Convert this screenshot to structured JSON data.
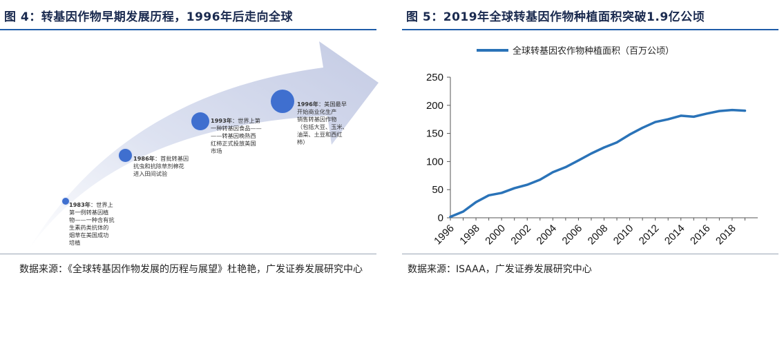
{
  "left_panel": {
    "title": "图 4：转基因作物早期发展历程，1996年后走向全球",
    "source": "数据来源：《全球转基因作物发展的历程与展望》杜艳艳，广发证券发展研究中心",
    "milestones": [
      {
        "year": "1983年",
        "lines": [
          "：世界上",
          "第一例转基因植",
          "物——一种含有抗",
          "生素药类抗体的",
          "烟草在美国成功",
          "培植"
        ]
      },
      {
        "year": "1986年",
        "lines": [
          "：首批转基因",
          "抗虫和抗除草剂棉花",
          "进入田间试验"
        ]
      },
      {
        "year": "1993年",
        "lines": [
          "：世界上第",
          "一种转基因食品——",
          "——转基因晚熟西",
          "红柿正式投放美国",
          "市场"
        ]
      },
      {
        "year": "1996年",
        "lines": [
          "：美国最早",
          "开始商业化生产",
          "销售转基因作物",
          "（包括大豆、玉米、",
          "油菜、土豆和西红",
          "柿）"
        ]
      }
    ]
  },
  "right_panel": {
    "title": "图 5：2019年全球转基因作物种植面积突破1.9亿公顷",
    "source": "数据来源：ISAAA，广发证券发展研究中心",
    "colors": {
      "line": "#2a73b8",
      "arrow": "#cfd5ea"
    }
  },
  "chart_data": {
    "type": "line",
    "legend": "全球转基因农作物种植面积（百万公顷）",
    "x": [
      1996,
      1997,
      1998,
      1999,
      2000,
      2001,
      2002,
      2003,
      2004,
      2005,
      2006,
      2007,
      2008,
      2009,
      2010,
      2011,
      2012,
      2013,
      2014,
      2015,
      2016,
      2017,
      2018,
      2019
    ],
    "series": [
      {
        "name": "全球转基因农作物种植面积（百万公顷）",
        "values": [
          1.7,
          11,
          27.8,
          39.9,
          44.2,
          52.6,
          58.7,
          67.7,
          81,
          90,
          102,
          114.3,
          125,
          134,
          148,
          160,
          170.3,
          175.2,
          181.5,
          179.7,
          185.1,
          189.8,
          191.7,
          190.4
        ]
      }
    ],
    "xticks": [
      "1996",
      "1998",
      "2000",
      "2002",
      "2004",
      "2006",
      "2008",
      "2010",
      "2012",
      "2014",
      "2016",
      "2018"
    ],
    "yticks": [
      "0",
      "50",
      "100",
      "150",
      "200",
      "250"
    ],
    "ylim": [
      0,
      250
    ],
    "xlim": [
      1996,
      2020
    ],
    "grid": false,
    "legend_position": "top"
  }
}
